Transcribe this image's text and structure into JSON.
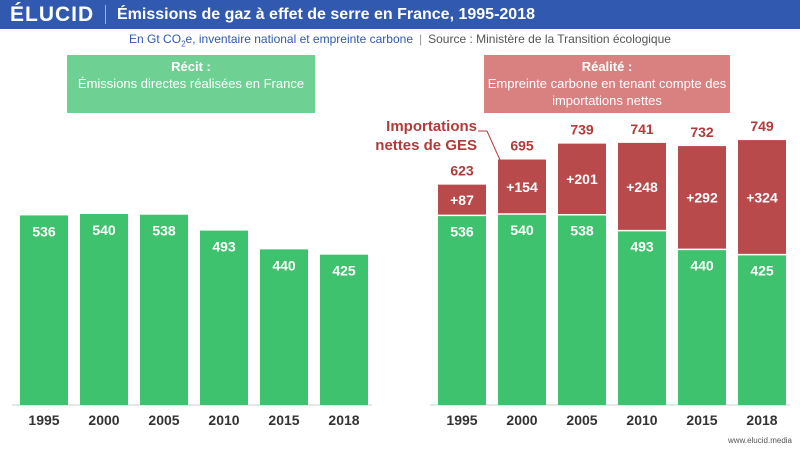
{
  "header": {
    "logo": "ÉLUCID",
    "title": "Émissions de gaz à effet de serre en France, 1995-2018"
  },
  "subtitle": {
    "unit_prefix": "En Gt CO",
    "unit_sub": "2",
    "unit_suffix": "e, inventaire national et empreinte carbone",
    "separator": "|",
    "source": "Source : Ministère de la Transition écologique"
  },
  "boxes": {
    "recit": {
      "head": "Récit :",
      "text": "Émissions directes réalisées en France"
    },
    "realite": {
      "head": "Réalité :",
      "text": "Empreinte carbone en tenant compte des importations nettes"
    }
  },
  "annotation": "Importations nettes de GES",
  "footer": "www.elucid.media",
  "colors": {
    "header": "#3159b0",
    "green": "#3fc26e",
    "red": "#b94a4c",
    "annotation": "#b13b3b"
  },
  "chart_data": [
    {
      "type": "bar",
      "categories": [
        "1995",
        "2000",
        "2005",
        "2010",
        "2015",
        "2018"
      ],
      "series": [
        {
          "name": "Émissions directes réalisées en France",
          "values": [
            536,
            540,
            538,
            493,
            440,
            425
          ]
        }
      ],
      "data_labels": [
        "536",
        "540",
        "538",
        "493",
        "440",
        "425"
      ]
    },
    {
      "type": "bar",
      "stacked": true,
      "categories": [
        "1995",
        "2000",
        "2005",
        "2010",
        "2015",
        "2018"
      ],
      "series": [
        {
          "name": "Émissions directes réalisées en France",
          "values": [
            536,
            540,
            538,
            493,
            440,
            425
          ]
        },
        {
          "name": "Importations nettes de GES",
          "values": [
            87,
            154,
            201,
            248,
            292,
            324
          ]
        }
      ],
      "segment_labels": [
        "+87",
        "+154",
        "+201",
        "+248",
        "+292",
        "+324"
      ],
      "totals": [
        623,
        695,
        739,
        741,
        732,
        749
      ]
    }
  ]
}
